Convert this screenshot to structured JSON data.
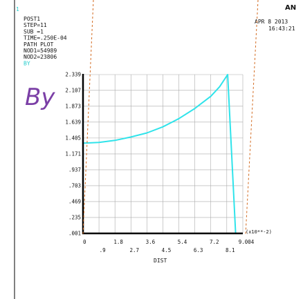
{
  "window": {
    "number": "1",
    "logo": "AN",
    "date": "APR  8 2013",
    "time": "16:43:21"
  },
  "info": {
    "lines": [
      "POST1",
      "STEP=11",
      "SUB =1",
      "TIME=.250E-04",
      "PATH PLOT",
      "NOD1=54989",
      "NOD2=23806"
    ],
    "series_tag": "BY"
  },
  "overlay": {
    "series_big_label": "By"
  },
  "colors": {
    "curve": "#2fe3ea",
    "axes": "#000000",
    "grid": "#aaaaaa",
    "dashed": "#d2691e",
    "overlay_text": "#7b3fa6",
    "number": "#22cccc",
    "series_tag": "#22cccc"
  },
  "chart_data": {
    "type": "line",
    "title": "",
    "xlabel": "DIST",
    "ylabel": "",
    "x_multiplier_label": "(x10**-2)",
    "xlim": [
      0,
      9.004
    ],
    "ylim": [
      0.001,
      2.339
    ],
    "grid": true,
    "x_tick_labels_top": [
      "0",
      "1.8",
      "3.6",
      "5.4",
      "7.2",
      "9.004"
    ],
    "x_tick_values_top": [
      0,
      1.8,
      3.6,
      5.4,
      7.2,
      9.004
    ],
    "x_tick_labels_bottom": [
      ".9",
      "2.7",
      "4.5",
      "6.3",
      "8.1"
    ],
    "x_tick_values_bottom": [
      0.9,
      2.7,
      4.5,
      6.3,
      8.1
    ],
    "y_tick_labels": [
      "2.339",
      "2.107",
      "1.873",
      "1.639",
      "1.405",
      "1.171",
      ".937",
      ".703",
      ".469",
      ".235",
      ".001"
    ],
    "y_tick_values": [
      2.339,
      2.107,
      1.873,
      1.639,
      1.405,
      1.171,
      0.937,
      0.703,
      0.469,
      0.235,
      0.001
    ],
    "series": [
      {
        "x": [
          0,
          0.005,
          0.9,
          1.8,
          2.7,
          3.6,
          4.5,
          5.4,
          6.3,
          7.2,
          7.7,
          8.15,
          8.6,
          9.004
        ],
        "values": [
          0.001,
          1.33,
          1.34,
          1.37,
          1.42,
          1.48,
          1.57,
          1.69,
          1.84,
          2.02,
          2.16,
          2.339,
          0.001,
          0.001
        ]
      }
    ]
  }
}
